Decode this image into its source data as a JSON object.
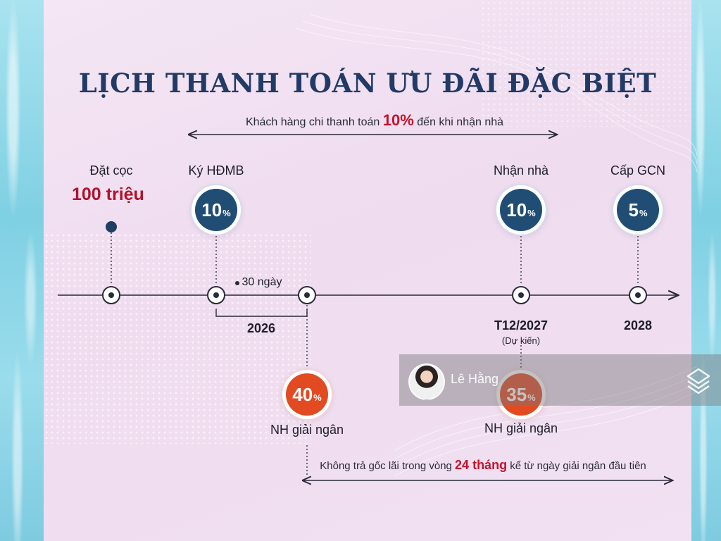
{
  "title": "LỊCH THANH TOÁN ƯU ĐÃI ĐẶC BIỆT",
  "top_note": {
    "before": "Khách hàng chi thanh toán",
    "highlight": "10%",
    "after": "đến khi nhận nhà"
  },
  "bottom_note": {
    "before": "Không trả gốc lãi trong vòng",
    "highlight": "24 tháng",
    "after": "kể từ ngày giải ngân đầu tiên"
  },
  "milestones": {
    "deposit": {
      "label": "Đặt cọc",
      "amount": "100 triệu"
    },
    "contract": {
      "label": "Ký HĐMB",
      "value": "10",
      "unit": "%"
    },
    "handover": {
      "label": "Nhận nhà",
      "value": "10",
      "unit": "%"
    },
    "certificate": {
      "label": "Cấp GCN",
      "value": "5",
      "unit": "%"
    },
    "disburse1": {
      "label": "NH giải ngân",
      "value": "40",
      "unit": "%"
    },
    "disburse2": {
      "label": "NH giải ngân",
      "value": "35",
      "unit": "%"
    }
  },
  "timeline": {
    "gap_label": "30 ngày",
    "year_2026": "2026",
    "date_handover": "T12/2027",
    "date_note": "(Dự kiến)",
    "year_2028": "2028"
  },
  "watermark": {
    "name": "Lê Hằng",
    "logo_icon": "layers-icon"
  },
  "colors": {
    "navy": "#1f4d73",
    "red": "#e24a22",
    "title": "#223a66",
    "highlight": "#c3142b"
  }
}
